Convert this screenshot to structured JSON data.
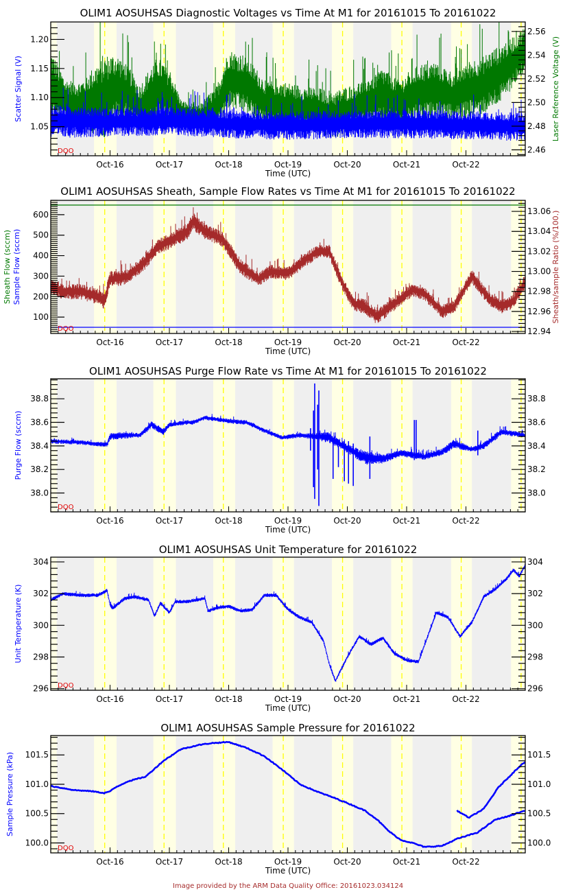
{
  "footer": "Image provided by the ARM Data Quality Office: 20161023.034124",
  "colors": {
    "blue": "#0000ff",
    "green": "#007800",
    "brown": "#a52a2a",
    "night_band": "#efefef",
    "day_band": "#ffffe4",
    "noon_line": "#ffff00",
    "dqo": "#e00000"
  },
  "chart_data": [
    {
      "type": "line",
      "title": "OLIM1 AOSUHSAS Diagnostic Voltages vs Time At M1 for 20161015 To 20161022",
      "xlabel": "Time (UTC)",
      "x_ticks": [
        "Oct-16",
        "Oct-17",
        "Oct-18",
        "Oct-19",
        "Oct-20",
        "Oct-21",
        "Oct-22"
      ],
      "xlim_days": [
        0,
        8
      ],
      "dqo_label": "DQO",
      "left_axis": {
        "label": "Scatter Signal (V)",
        "color": "#0000ff",
        "ylim": [
          1.0,
          1.23
        ],
        "ticks": [
          "1.05",
          "1.10",
          "1.15",
          "1.20"
        ],
        "tick_values": [
          1.05,
          1.1,
          1.15,
          1.2
        ]
      },
      "right_axis": {
        "label": "Laser Reference Voltage (V)",
        "color": "#007800",
        "ylim": [
          2.455,
          2.568
        ],
        "ticks": [
          "2.46",
          "2.48",
          "2.50",
          "2.52",
          "2.54",
          "2.56"
        ],
        "tick_values": [
          2.46,
          2.48,
          2.5,
          2.52,
          2.54,
          2.56
        ]
      },
      "series": [
        {
          "name": "Laser Reference Voltage",
          "axis": "right",
          "color": "#007800",
          "noisy": true,
          "x": [
            0,
            0.25,
            0.5,
            0.9,
            1.1,
            1.3,
            1.5,
            1.8,
            2.0,
            2.2,
            2.5,
            2.8,
            3.0,
            3.3,
            3.6,
            3.9,
            4.2,
            4.5,
            4.8,
            5.0,
            5.3,
            5.6,
            5.9,
            6.2,
            6.5,
            6.8,
            7.0,
            7.3,
            7.6,
            7.9,
            8.0
          ],
          "mid": [
            2.515,
            2.5,
            2.498,
            2.505,
            2.512,
            2.508,
            2.495,
            2.51,
            2.505,
            2.492,
            2.488,
            2.495,
            2.52,
            2.515,
            2.5,
            2.498,
            2.495,
            2.493,
            2.49,
            2.494,
            2.5,
            2.505,
            2.5,
            2.508,
            2.51,
            2.505,
            2.51,
            2.515,
            2.525,
            2.54,
            2.545
          ],
          "amp": [
            0.03,
            0.02,
            0.02,
            0.035,
            0.03,
            0.025,
            0.02,
            0.03,
            0.025,
            0.01,
            0.01,
            0.02,
            0.025,
            0.025,
            0.02,
            0.02,
            0.02,
            0.02,
            0.02,
            0.02,
            0.02,
            0.025,
            0.02,
            0.025,
            0.025,
            0.02,
            0.025,
            0.025,
            0.025,
            0.02,
            0.02
          ]
        },
        {
          "name": "Scatter Signal",
          "axis": "left",
          "color": "#0000ff",
          "noisy": true,
          "x": [
            0,
            1,
            2,
            3,
            4,
            5,
            6,
            7,
            8
          ],
          "mid": [
            1.06,
            1.058,
            1.06,
            1.055,
            1.052,
            1.055,
            1.055,
            1.053,
            1.05
          ],
          "amp": [
            0.03,
            0.025,
            0.025,
            0.025,
            0.025,
            0.025,
            0.025,
            0.025,
            0.025
          ]
        }
      ]
    },
    {
      "type": "line",
      "title": "OLIM1 AOSUHSAS Sheath, Sample Flow Rates vs Time At M1 for 20161015 To 20161022",
      "xlabel": "Time (UTC)",
      "x_ticks": [
        "Oct-16",
        "Oct-17",
        "Oct-18",
        "Oct-19",
        "Oct-20",
        "Oct-21",
        "Oct-22"
      ],
      "xlim_days": [
        0,
        8
      ],
      "dqo_label": "DQO",
      "left_axis": {
        "label_lines": [
          {
            "text": "Sheath Flow (sccm)",
            "color": "#007800"
          },
          {
            "text": "Sample Flow (sccm)",
            "color": "#0000ff"
          }
        ],
        "ylim": [
          20,
          670
        ],
        "ticks": [
          "100",
          "200",
          "300",
          "400",
          "500",
          "600"
        ],
        "tick_values": [
          100,
          200,
          300,
          400,
          500,
          600
        ]
      },
      "right_axis": {
        "label": "Sheath/sample Ratio (%/100.)",
        "color": "#a52a2a",
        "ylim": [
          12.938,
          13.071
        ],
        "ticks": [
          "12.94",
          "12.96",
          "12.98",
          "13.00",
          "13.02",
          "13.04",
          "13.06"
        ],
        "tick_values": [
          12.94,
          12.96,
          12.98,
          13.0,
          13.02,
          13.04,
          13.06
        ]
      },
      "series": [
        {
          "name": "Sheath Flow",
          "axis": "left",
          "color": "#007800",
          "noisy": false,
          "x": [
            0,
            8
          ],
          "mid": [
            647,
            647
          ],
          "amp": [
            0,
            0
          ]
        },
        {
          "name": "Sample Flow",
          "axis": "left",
          "color": "#0000ff",
          "noisy": false,
          "x": [
            0,
            8
          ],
          "mid": [
            50,
            50
          ],
          "amp": [
            0,
            0
          ]
        },
        {
          "name": "Sheath/sample Ratio",
          "axis": "right",
          "color": "#a52a2a",
          "noisy": true,
          "x": [
            0,
            0.2,
            0.5,
            0.8,
            0.9,
            1.0,
            1.1,
            1.3,
            1.6,
            1.8,
            2.0,
            2.3,
            2.4,
            2.6,
            2.9,
            3.2,
            3.5,
            3.7,
            4.0,
            4.3,
            4.5,
            4.7,
            4.9,
            5.1,
            5.3,
            5.5,
            5.8,
            6.1,
            6.3,
            6.6,
            6.8,
            7.1,
            7.4,
            7.6,
            7.8,
            8.0
          ],
          "mid": [
            12.985,
            12.98,
            12.98,
            12.975,
            12.97,
            12.992,
            12.993,
            12.995,
            13.01,
            13.025,
            13.03,
            13.04,
            13.05,
            13.04,
            13.032,
            13.005,
            12.992,
            13.0,
            12.998,
            13.012,
            13.02,
            13.02,
            12.99,
            12.968,
            12.965,
            12.955,
            12.968,
            12.982,
            12.978,
            12.96,
            12.965,
            12.995,
            12.972,
            12.965,
            12.97,
            12.99
          ],
          "amp": [
            0.008,
            0.008,
            0.008,
            0.008,
            0.008,
            0.008,
            0.008,
            0.008,
            0.008,
            0.008,
            0.008,
            0.009,
            0.009,
            0.008,
            0.008,
            0.008,
            0.007,
            0.007,
            0.007,
            0.007,
            0.007,
            0.007,
            0.007,
            0.007,
            0.008,
            0.008,
            0.007,
            0.007,
            0.007,
            0.007,
            0.007,
            0.007,
            0.007,
            0.007,
            0.007,
            0.008
          ]
        }
      ]
    },
    {
      "type": "line",
      "title": "OLIM1 AOSUHSAS Purge Flow Rate vs Time At M1 for 20161015 To 20161022",
      "xlabel": "Time (UTC)",
      "x_ticks": [
        "Oct-16",
        "Oct-17",
        "Oct-18",
        "Oct-19",
        "Oct-20",
        "Oct-21",
        "Oct-22"
      ],
      "xlim_days": [
        0,
        8
      ],
      "dqo_label": "DQO",
      "left_axis": {
        "label": "Purge Flow (sccm)",
        "color": "#0000ff",
        "ylim": [
          37.84,
          38.97
        ],
        "ticks": [
          "38.0",
          "38.2",
          "38.4",
          "38.6",
          "38.8"
        ],
        "tick_values": [
          38.0,
          38.2,
          38.4,
          38.6,
          38.8
        ]
      },
      "right_axis": {
        "label": "",
        "color": "#000000",
        "ylim": [
          37.84,
          38.97
        ],
        "ticks": [
          "38.0",
          "38.2",
          "38.4",
          "38.6",
          "38.8"
        ],
        "tick_values": [
          38.0,
          38.2,
          38.4,
          38.6,
          38.8
        ]
      },
      "series": [
        {
          "name": "Purge Flow",
          "axis": "left",
          "color": "#0000ff",
          "noisy": true,
          "x": [
            0,
            0.5,
            0.95,
            1.0,
            1.2,
            1.5,
            1.7,
            1.9,
            2.0,
            2.3,
            2.4,
            2.6,
            3.0,
            3.3,
            3.6,
            3.9,
            4.2,
            4.5,
            4.7,
            5.0,
            5.3,
            5.6,
            5.9,
            6.3,
            6.6,
            6.8,
            7.1,
            7.3,
            7.6,
            8.0
          ],
          "mid": [
            38.44,
            38.43,
            38.41,
            38.48,
            38.49,
            38.49,
            38.58,
            38.52,
            38.58,
            38.6,
            38.6,
            38.64,
            38.61,
            38.6,
            38.53,
            38.47,
            38.49,
            38.48,
            38.47,
            38.38,
            38.3,
            38.29,
            38.34,
            38.31,
            38.35,
            38.42,
            38.37,
            38.4,
            38.52,
            38.49
          ],
          "amp": [
            0.02,
            0.02,
            0.02,
            0.03,
            0.03,
            0.02,
            0.03,
            0.03,
            0.02,
            0.02,
            0.02,
            0.02,
            0.02,
            0.02,
            0.02,
            0.02,
            0.02,
            0.03,
            0.05,
            0.04,
            0.06,
            0.04,
            0.03,
            0.03,
            0.03,
            0.04,
            0.02,
            0.03,
            0.03,
            0.02
          ]
        },
        {
          "name": "Purge Flow spikes",
          "axis": "left",
          "color": "#0000ff",
          "noisy": false,
          "spikes": true,
          "x": [
            4.38,
            4.43,
            4.45,
            4.5,
            4.52,
            4.76,
            4.85,
            4.95,
            5.02,
            5.1,
            5.38,
            6.13,
            6.16,
            7.2
          ],
          "lo": [
            38.36,
            38.05,
            37.95,
            38.2,
            37.89,
            38.12,
            38.22,
            38.1,
            38.08,
            38.06,
            38.12,
            38.28,
            38.29,
            38.32
          ],
          "hi": [
            38.55,
            38.7,
            38.93,
            38.75,
            38.87,
            38.46,
            38.4,
            38.44,
            38.44,
            38.42,
            38.48,
            38.62,
            38.62,
            38.53
          ]
        }
      ]
    },
    {
      "type": "line",
      "title": "OLIM1 AOSUHSAS Unit Temperature for 20161022",
      "xlabel": "Time (UTC)",
      "x_ticks": [
        "Oct-16",
        "Oct-17",
        "Oct-18",
        "Oct-19",
        "Oct-20",
        "Oct-21",
        "Oct-22"
      ],
      "xlim_days": [
        0,
        8
      ],
      "dqo_label": "DQO",
      "left_axis": {
        "label": "Unit Temperature (K)",
        "color": "#0000ff",
        "ylim": [
          295.9,
          304.3
        ],
        "ticks": [
          "296",
          "298",
          "300",
          "302",
          "304"
        ],
        "tick_values": [
          296,
          298,
          300,
          302,
          304
        ]
      },
      "right_axis": {
        "label": "",
        "color": "#000000",
        "ylim": [
          295.9,
          304.3
        ],
        "ticks": [
          "296",
          "298",
          "300",
          "302",
          "304"
        ],
        "tick_values": [
          296,
          298,
          300,
          302,
          304
        ]
      },
      "series": [
        {
          "name": "Unit Temperature",
          "axis": "left",
          "color": "#0000ff",
          "noisy": true,
          "x": [
            0,
            0.2,
            0.5,
            0.8,
            0.95,
            1.0,
            1.05,
            1.15,
            1.25,
            1.4,
            1.65,
            1.75,
            1.85,
            2.0,
            2.1,
            2.3,
            2.6,
            2.65,
            2.8,
            3.0,
            3.2,
            3.4,
            3.6,
            3.8,
            4.0,
            4.2,
            4.4,
            4.6,
            4.7,
            4.8,
            5.0,
            5.2,
            5.4,
            5.6,
            5.8,
            6.0,
            6.2,
            6.5,
            6.7,
            6.9,
            7.1,
            7.3,
            7.5,
            7.7,
            7.8,
            7.9,
            8.0
          ],
          "mid": [
            301.6,
            302.0,
            301.9,
            301.9,
            302.2,
            301.3,
            301.1,
            301.4,
            301.7,
            301.8,
            301.6,
            300.6,
            301.4,
            300.8,
            301.5,
            301.5,
            301.7,
            300.9,
            301.1,
            301.2,
            300.9,
            301.0,
            301.9,
            301.9,
            301.0,
            300.5,
            300.2,
            299.0,
            297.5,
            296.5,
            298.0,
            299.3,
            298.8,
            299.2,
            298.2,
            297.8,
            297.7,
            300.8,
            300.5,
            299.3,
            300.2,
            301.8,
            302.3,
            303.0,
            303.5,
            303.1,
            303.8
          ],
          "amp": [
            0.12,
            0.12,
            0.12,
            0.12,
            0.12,
            0.15,
            0.15,
            0.12,
            0.12,
            0.12,
            0.12,
            0.12,
            0.12,
            0.12,
            0.12,
            0.12,
            0.12,
            0.12,
            0.12,
            0.12,
            0.12,
            0.12,
            0.12,
            0.12,
            0.12,
            0.12,
            0.12,
            0.12,
            0.12,
            0.12,
            0.12,
            0.12,
            0.12,
            0.12,
            0.12,
            0.12,
            0.12,
            0.12,
            0.12,
            0.12,
            0.12,
            0.12,
            0.12,
            0.12,
            0.12,
            0.12,
            0.12
          ]
        }
      ]
    },
    {
      "type": "line",
      "title": "OLIM1 AOSUHSAS Sample Pressure for 20161022",
      "xlabel": "Time (UTC)",
      "x_ticks": [
        "Oct-16",
        "Oct-17",
        "Oct-18",
        "Oct-19",
        "Oct-20",
        "Oct-21",
        "Oct-22"
      ],
      "xlim_days": [
        0,
        8
      ],
      "dqo_label": "DQO",
      "left_axis": {
        "label": "Sample Pressure (kPa)",
        "color": "#0000ff",
        "ylim": [
          99.83,
          101.83
        ],
        "ticks": [
          "100.0",
          "100.5",
          "101.0",
          "101.5"
        ],
        "tick_values": [
          100.0,
          100.5,
          101.0,
          101.5
        ]
      },
      "right_axis": {
        "label": "",
        "color": "#000000",
        "ylim": [
          99.83,
          101.83
        ],
        "ticks": [
          "100.0",
          "100.5",
          "101.0",
          "101.5"
        ],
        "tick_values": [
          100.0,
          100.5,
          101.0,
          101.5
        ]
      },
      "series": [
        {
          "name": "Sample Pressure",
          "axis": "left",
          "color": "#0000ff",
          "noisy": true,
          "x": [
            0,
            0.4,
            0.7,
            0.9,
            1.0,
            1.1,
            1.3,
            1.6,
            1.9,
            2.2,
            2.5,
            2.7,
            3.0,
            3.3,
            3.6,
            3.9,
            4.2,
            4.5,
            4.8,
            5.0,
            5.3,
            5.5,
            5.7,
            5.9,
            6.1,
            6.3,
            6.6,
            6.85,
            6.95,
            7.2,
            7.5,
            7.7,
            7.9,
            8.0
          ],
          "mid": [
            100.97,
            100.9,
            100.88,
            100.85,
            100.88,
            100.95,
            101.05,
            101.13,
            101.4,
            101.6,
            101.67,
            101.7,
            101.72,
            101.62,
            101.48,
            101.25,
            101.0,
            100.87,
            100.76,
            100.68,
            100.55,
            100.4,
            100.2,
            100.05,
            100.0,
            99.93,
            99.95,
            100.07,
            100.1,
            100.18,
            100.4,
            100.45,
            100.52,
            100.55
          ]
        },
        {
          "name": "Sample Pressure tail",
          "axis": "left",
          "color": "#0000ff",
          "noisy": true,
          "x": [
            6.85,
            7.05,
            7.3,
            7.55,
            7.75,
            7.95,
            8.0
          ],
          "mid": [
            100.55,
            100.43,
            100.58,
            100.95,
            101.15,
            101.35,
            101.38
          ]
        }
      ]
    }
  ]
}
